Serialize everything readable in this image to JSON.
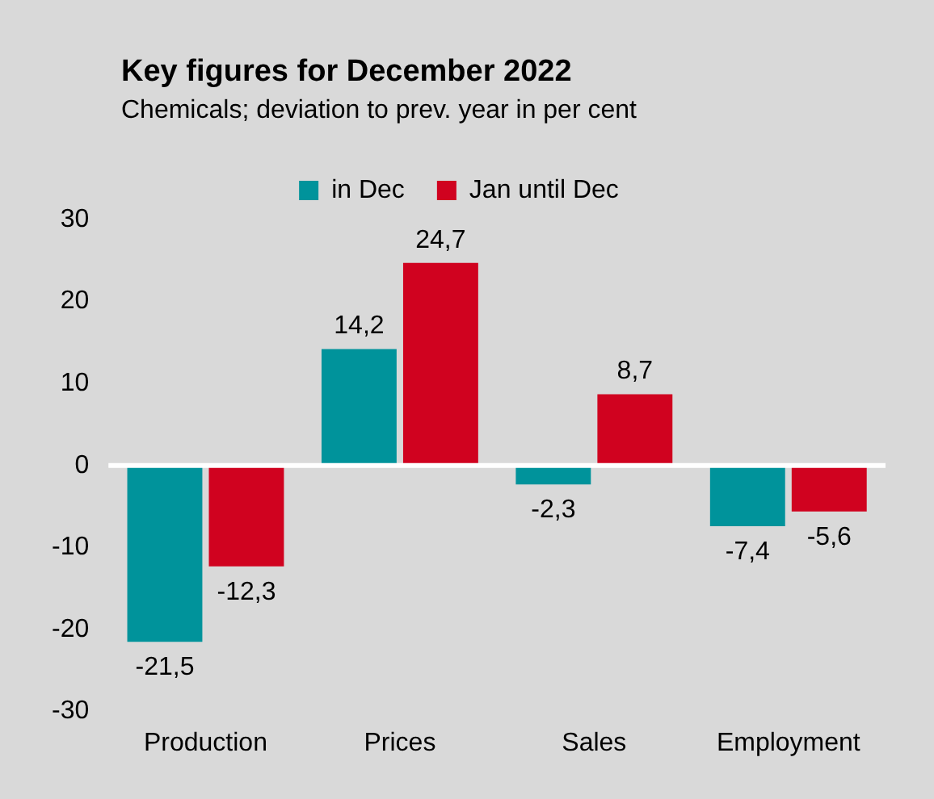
{
  "chart_data": {
    "type": "bar",
    "title": "Key figures for December 2022",
    "subtitle": "Chemicals; deviation to prev. year in per cent",
    "categories": [
      "Production",
      "Prices",
      "Sales",
      "Employment"
    ],
    "series": [
      {
        "name": "in Dec",
        "color": "#00939b",
        "values": [
          -21.5,
          14.2,
          -2.3,
          -7.4
        ],
        "value_labels": [
          "-21,5",
          "14,2",
          "-2,3",
          "-7,4"
        ]
      },
      {
        "name": "Jan until Dec",
        "color": "#d0021f",
        "values": [
          -12.3,
          24.7,
          8.7,
          -5.6
        ],
        "value_labels": [
          "-12,3",
          "24,7",
          "8,7",
          "-5,6"
        ]
      }
    ],
    "ylim": [
      -30,
      30
    ],
    "yticks": [
      -30,
      -20,
      -10,
      0,
      10,
      20,
      30
    ],
    "grid": false,
    "legend": "top",
    "ref_lines": [
      {
        "axis": "y",
        "value": 0,
        "color": "#ffffff"
      }
    ]
  }
}
